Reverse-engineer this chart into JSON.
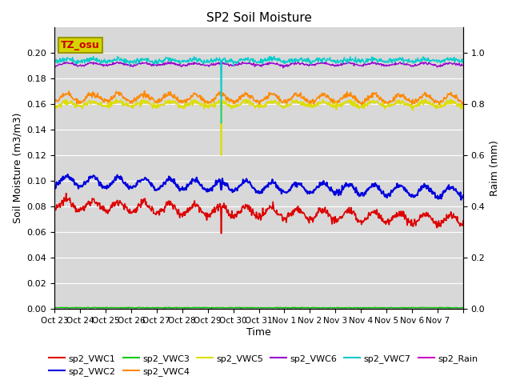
{
  "title": "SP2 Soil Moisture",
  "xlabel": "Time",
  "ylabel_left": "Soil Moisture (m3/m3)",
  "ylabel_right": "Raim (mm)",
  "ylim_left": [
    0.0,
    0.22
  ],
  "ylim_right": [
    0.0,
    1.1
  ],
  "yticks_left": [
    0.0,
    0.02,
    0.04,
    0.06,
    0.08,
    0.1,
    0.12,
    0.14,
    0.16,
    0.18,
    0.2
  ],
  "yticks_right_vals": [
    0.0,
    0.2,
    0.4,
    0.6,
    0.8,
    1.0
  ],
  "yticks_right_labels": [
    "0.0",
    "0.2",
    "0.4",
    "0.6",
    "0.8",
    "1.0"
  ],
  "background_color": "#d8d8d8",
  "annotation_text": "TZ_osu",
  "annotation_bg": "#d4d400",
  "annotation_text_color": "#cc0000",
  "annotation_edge_color": "#999900",
  "series": {
    "sp2_VWC1": {
      "color": "#dd0000",
      "lw": 1.2
    },
    "sp2_VWC2": {
      "color": "#0000dd",
      "lw": 1.5
    },
    "sp2_VWC3": {
      "color": "#00cc00",
      "lw": 1.0
    },
    "sp2_VWC4": {
      "color": "#ff8800",
      "lw": 1.2
    },
    "sp2_VWC5": {
      "color": "#dddd00",
      "lw": 1.2
    },
    "sp2_VWC6": {
      "color": "#9900cc",
      "lw": 1.0
    },
    "sp2_VWC7": {
      "color": "#00cccc",
      "lw": 1.0
    },
    "sp2_Rain": {
      "color": "#cc00cc",
      "lw": 1.0
    }
  },
  "xtick_labels": [
    "Oct 23",
    "Oct 24",
    "Oct 25",
    "Oct 26",
    "Oct 27",
    "Oct 28",
    "Oct 29",
    "Oct 30",
    "Oct 31",
    "Nov 1",
    "Nov 2",
    "Nov 3",
    "Nov 4",
    "Nov 5",
    "Nov 6",
    "Nov 7"
  ],
  "n_days": 16,
  "samples_per_day": 48,
  "spike_day": 6.5
}
